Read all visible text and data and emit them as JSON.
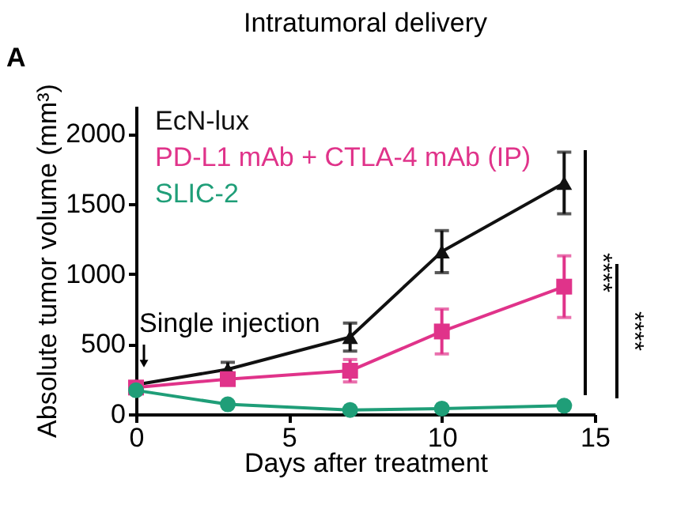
{
  "chart_data": {
    "type": "line",
    "title": "Intratumoral delivery",
    "xlabel": "Days after treatment",
    "ylabel": "Absolute tumor volume (mm³)",
    "x": [
      0,
      3,
      7,
      10,
      14
    ],
    "series": [
      {
        "name": "EcN-lux",
        "color": "#111111",
        "marker": "triangle",
        "values": [
          210,
          320,
          550,
          1160,
          1650
        ],
        "errors": [
          null,
          50,
          100,
          150,
          220
        ]
      },
      {
        "name": "PD-L1 mAb + CTLA-4 mAb (IP)",
        "color": "#e0338a",
        "marker": "square",
        "values": [
          190,
          250,
          310,
          590,
          910
        ],
        "errors": [
          null,
          40,
          80,
          160,
          220
        ]
      },
      {
        "name": "SLIC-2",
        "color": "#1f9e78",
        "marker": "circle",
        "values": [
          170,
          70,
          30,
          40,
          60
        ],
        "errors": [
          null,
          null,
          null,
          null,
          null
        ]
      }
    ],
    "xlim": [
      0,
      15
    ],
    "xticks": [
      0,
      5,
      10,
      15
    ],
    "ylim": [
      0,
      2200
    ],
    "yticks": [
      0,
      500,
      1000,
      1500,
      2000
    ],
    "grid": false,
    "legend": "top left",
    "annotations": [
      "A",
      "Single injection",
      "****",
      "****"
    ]
  }
}
